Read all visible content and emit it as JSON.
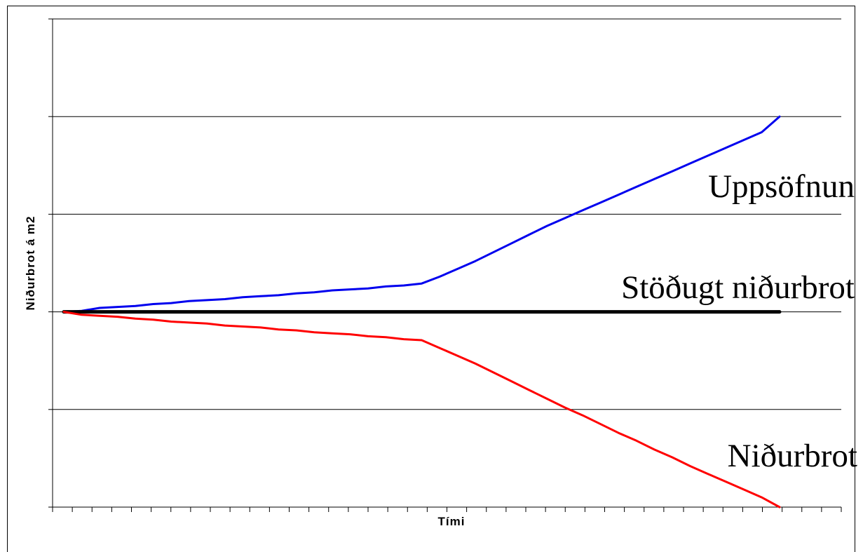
{
  "chart_data": {
    "type": "line",
    "title": "",
    "xlabel": "Tími",
    "ylabel": "Niðurbrot á m2",
    "ylim": [
      -2,
      3
    ],
    "x_ticks": 40,
    "grid": "horizontal",
    "legend": "none",
    "x": [
      0,
      1,
      2,
      3,
      4,
      5,
      6,
      7,
      8,
      9,
      10,
      11,
      12,
      13,
      14,
      15,
      16,
      17,
      18,
      19,
      20,
      21,
      22,
      23,
      24,
      25,
      26,
      27,
      28,
      29,
      30,
      31,
      32,
      33,
      34,
      35,
      36,
      37,
      38,
      39,
      40
    ],
    "series": [
      {
        "label": "Uppsöfnun",
        "color": "#0000ee",
        "values": [
          0.0,
          0.01,
          0.04,
          0.05,
          0.06,
          0.08,
          0.09,
          0.11,
          0.12,
          0.13,
          0.15,
          0.16,
          0.17,
          0.19,
          0.2,
          0.22,
          0.23,
          0.24,
          0.26,
          0.27,
          0.29,
          0.36,
          0.44,
          0.52,
          0.61,
          0.7,
          0.79,
          0.88,
          0.96,
          1.04,
          1.12,
          1.2,
          1.28,
          1.36,
          1.44,
          1.52,
          1.6,
          1.68,
          1.76,
          1.84,
          2.0
        ]
      },
      {
        "label": "Stöðugt niðurbrot",
        "color": "#000000",
        "values": [
          0,
          0,
          0,
          0,
          0,
          0,
          0,
          0,
          0,
          0,
          0,
          0,
          0,
          0,
          0,
          0,
          0,
          0,
          0,
          0,
          0,
          0,
          0,
          0,
          0,
          0,
          0,
          0,
          0,
          0,
          0,
          0,
          0,
          0,
          0,
          0,
          0,
          0,
          0,
          0,
          0
        ]
      },
      {
        "label": "Niðurbrot",
        "color": "#ff0000",
        "values": [
          0.0,
          -0.03,
          -0.04,
          -0.05,
          -0.07,
          -0.08,
          -0.1,
          -0.11,
          -0.12,
          -0.14,
          -0.15,
          -0.16,
          -0.18,
          -0.19,
          -0.21,
          -0.22,
          -0.23,
          -0.25,
          -0.26,
          -0.28,
          -0.29,
          -0.37,
          -0.45,
          -0.53,
          -0.62,
          -0.71,
          -0.8,
          -0.89,
          -0.98,
          -1.06,
          -1.15,
          -1.24,
          -1.32,
          -1.41,
          -1.49,
          -1.58,
          -1.66,
          -1.74,
          -1.82,
          -1.9,
          -2.0
        ]
      }
    ],
    "annotations": [
      "Uppsöfnun",
      "Stöðugt niðurbrot",
      "Niðurbrot"
    ]
  }
}
